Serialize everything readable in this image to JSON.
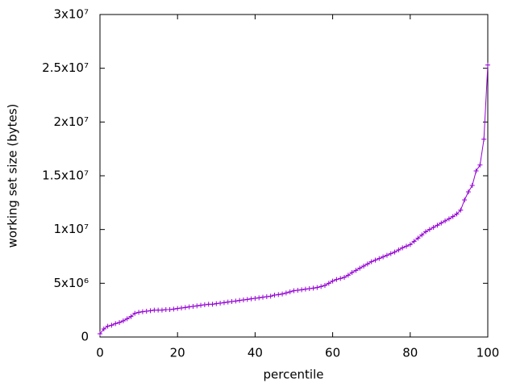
{
  "chart_data": {
    "type": "line",
    "xlabel": "percentile",
    "ylabel": "working set size (bytes)",
    "xlim": [
      0,
      100
    ],
    "xticks": [
      0,
      20,
      40,
      60,
      80,
      100
    ],
    "ylim": [
      0,
      30000000
    ],
    "yticks": [
      0,
      {
        "value": 5000000,
        "label": "5x10⁶"
      },
      {
        "value": 10000000,
        "label": "1x10⁷"
      },
      {
        "value": 15000000,
        "label": "1.5x10⁷"
      },
      {
        "value": 20000000,
        "label": "2x10⁷"
      },
      {
        "value": 25000000,
        "label": "2.5x10⁷"
      },
      {
        "value": 30000000,
        "label": "3x10⁷"
      }
    ],
    "x": [
      0,
      1,
      2,
      3,
      4,
      5,
      6,
      7,
      8,
      9,
      10,
      11,
      12,
      13,
      14,
      15,
      16,
      17,
      18,
      19,
      20,
      21,
      22,
      23,
      24,
      25,
      26,
      27,
      28,
      29,
      30,
      31,
      32,
      33,
      34,
      35,
      36,
      37,
      38,
      39,
      40,
      41,
      42,
      43,
      44,
      45,
      46,
      47,
      48,
      49,
      50,
      51,
      52,
      53,
      54,
      55,
      56,
      57,
      58,
      59,
      60,
      61,
      62,
      63,
      64,
      65,
      66,
      67,
      68,
      69,
      70,
      71,
      72,
      73,
      74,
      75,
      76,
      77,
      78,
      79,
      80,
      81,
      82,
      83,
      84,
      85,
      86,
      87,
      88,
      89,
      90,
      91,
      92,
      93,
      94,
      95,
      96,
      97,
      98,
      99,
      100
    ],
    "series": [
      {
        "color": "#9400d3",
        "values": [
          300000,
          750000,
          1000000,
          1100000,
          1250000,
          1350000,
          1500000,
          1700000,
          1900000,
          2200000,
          2300000,
          2350000,
          2400000,
          2450000,
          2500000,
          2500000,
          2500000,
          2550000,
          2550000,
          2600000,
          2650000,
          2700000,
          2750000,
          2800000,
          2850000,
          2900000,
          2950000,
          3000000,
          3050000,
          3050000,
          3100000,
          3150000,
          3200000,
          3250000,
          3300000,
          3350000,
          3400000,
          3450000,
          3500000,
          3550000,
          3600000,
          3650000,
          3700000,
          3750000,
          3800000,
          3900000,
          3950000,
          4000000,
          4100000,
          4200000,
          4300000,
          4350000,
          4400000,
          4450000,
          4500000,
          4550000,
          4600000,
          4700000,
          4800000,
          5000000,
          5200000,
          5350000,
          5450000,
          5550000,
          5750000,
          6000000,
          6200000,
          6400000,
          6600000,
          6800000,
          7000000,
          7150000,
          7300000,
          7450000,
          7600000,
          7750000,
          7900000,
          8100000,
          8300000,
          8450000,
          8600000,
          8900000,
          9200000,
          9500000,
          9800000,
          10000000,
          10200000,
          10400000,
          10600000,
          10800000,
          11000000,
          11200000,
          11450000,
          11800000,
          12750000,
          13500000,
          14100000,
          15450000,
          16000000,
          18400000,
          25300000
        ]
      }
    ]
  }
}
